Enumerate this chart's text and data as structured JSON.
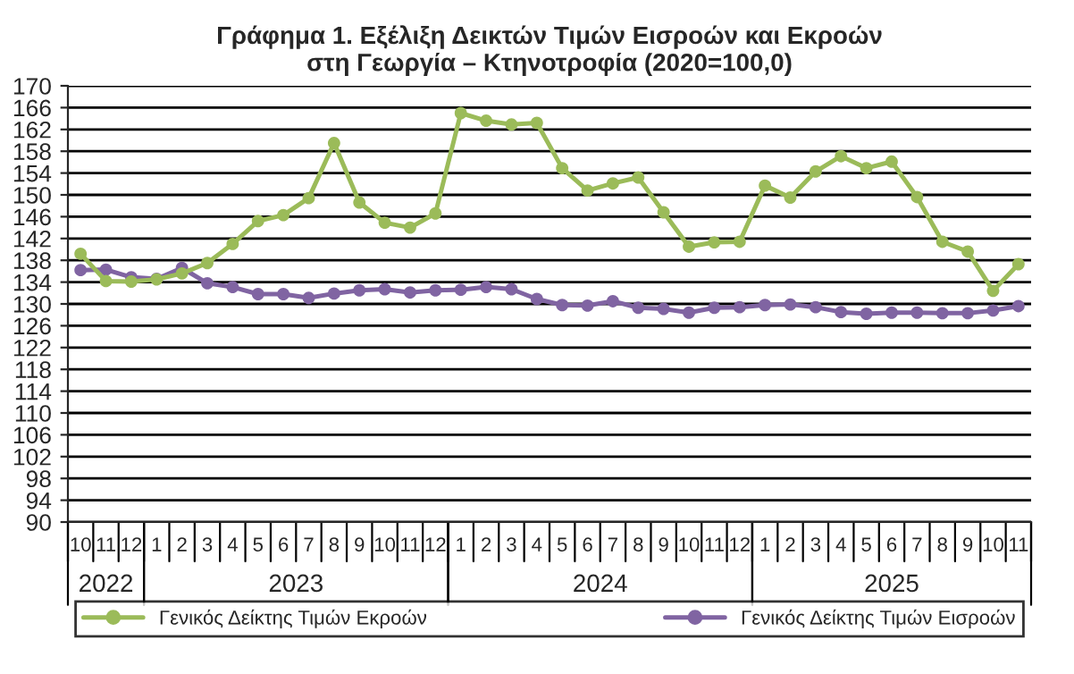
{
  "chart_data": {
    "type": "line",
    "title": "Γράφημα 1. Εξέλιξη Δεικτών Τιμών Εισροών και Εκροών\nστη Γεωργία – Κτηνοτροφία (2020=100,0)",
    "categories": [
      "10",
      "11",
      "12",
      "1",
      "2",
      "3",
      "4",
      "5",
      "6",
      "7",
      "8",
      "9",
      "10",
      "11",
      "12",
      "1",
      "2",
      "3",
      "4",
      "5",
      "6",
      "7",
      "8",
      "9",
      "10",
      "11",
      "12",
      "1",
      "2",
      "3",
      "4",
      "5",
      "6",
      "7",
      "8",
      "9",
      "10",
      "11"
    ],
    "series": [
      {
        "name": "Γενικός Δείκτης Τιμών Εκροών",
        "color": "#9bbb59",
        "values": [
          139.2,
          134.2,
          134.1,
          134.5,
          135.6,
          137.5,
          141.0,
          145.2,
          146.3,
          149.4,
          159.5,
          148.6,
          144.9,
          144.0,
          146.6,
          165.0,
          163.6,
          162.9,
          163.2,
          154.9,
          150.8,
          152.1,
          153.2,
          146.8,
          140.5,
          141.3,
          141.4,
          151.7,
          149.5,
          154.3,
          157.1,
          154.9,
          156.1,
          149.6,
          141.4,
          139.6,
          132.4,
          137.3
        ]
      },
      {
        "name": "Γενικός Δείκτης Τιμών Εισροών",
        "color": "#8064a2",
        "values": [
          136.2,
          136.3,
          134.9,
          134.6,
          136.6,
          133.8,
          133.1,
          131.8,
          131.8,
          131.1,
          131.9,
          132.5,
          132.7,
          132.1,
          132.5,
          132.6,
          133.1,
          132.7,
          130.9,
          129.8,
          129.7,
          130.5,
          129.3,
          129.1,
          128.4,
          129.3,
          129.4,
          129.8,
          129.9,
          129.4,
          128.5,
          128.2,
          128.4,
          128.4,
          128.3,
          128.3,
          128.8,
          129.6
        ]
      }
    ],
    "annotations": [
      "2022",
      "2023",
      "2024",
      "2025"
    ],
    "ylim": [
      90,
      170
    ],
    "yticks": [
      90,
      94,
      98,
      102,
      106,
      110,
      114,
      118,
      122,
      126,
      130,
      134,
      138,
      142,
      146,
      150,
      154,
      158,
      162,
      166,
      170
    ],
    "grid": "y",
    "legend": "bottom",
    "marker": "circle",
    "line_style": "solid"
  }
}
